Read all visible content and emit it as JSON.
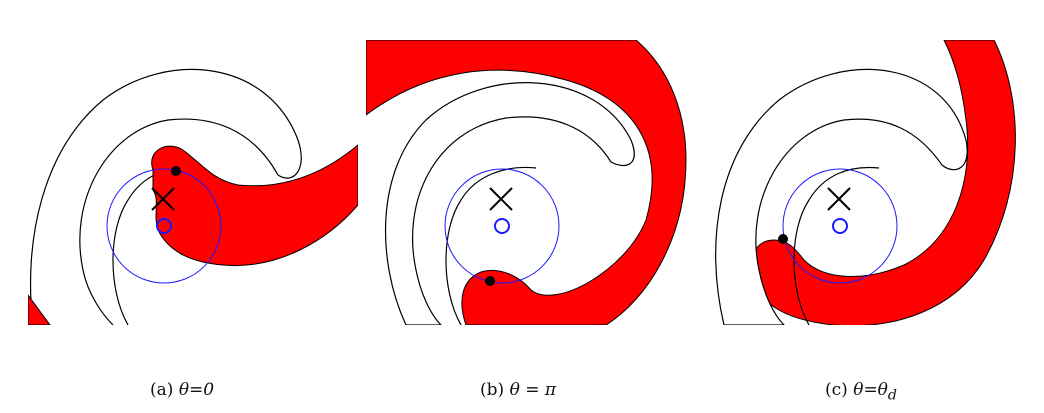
{
  "colors": {
    "scroll_fill": "#ff0000",
    "outline": "#000000",
    "circle": "#1a1aff"
  },
  "panels": [
    {
      "tag": "(a)",
      "math": "θ=0"
    },
    {
      "tag": "(b)",
      "math": "θ = π"
    },
    {
      "tag": "(c)",
      "math": "θ=θ",
      "sub": "d"
    }
  ]
}
